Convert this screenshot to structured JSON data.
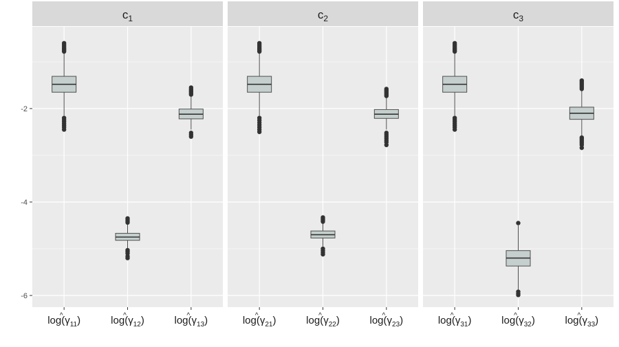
{
  "chart_data": {
    "type": "boxplot",
    "colors": {
      "panel_background": "#ebebeb",
      "strip_background": "#d9d9d9",
      "grid": "#ffffff",
      "box_fill": "#c5d0ce",
      "box_stroke": "#4d4d4d",
      "outlier": "#333333",
      "axis_text": "#4d4d4d"
    },
    "ylim": [
      -6.25,
      -0.25
    ],
    "y_ticks": [
      {
        "value": -2,
        "label": "-2"
      },
      {
        "value": -4,
        "label": "-4"
      },
      {
        "value": -6,
        "label": "-6"
      }
    ],
    "facets": [
      {
        "strip": {
          "base": "c",
          "sub": "1"
        },
        "boxes": [
          {
            "label": {
              "base": "log(",
              "hat": "^",
              "greek": "γ",
              "sub": "11",
              "close": ")"
            },
            "whisker_low": -2.15,
            "q1": -1.65,
            "median": -1.48,
            "q3": -1.31,
            "whisker_high": -0.8,
            "outliers": [
              -0.6,
              -0.63,
              -0.66,
              -0.69,
              -0.72,
              -0.75,
              -0.78,
              -2.2,
              -2.24,
              -2.28,
              -2.32,
              -2.36,
              -2.4,
              -2.45
            ]
          },
          {
            "label": {
              "base": "log(",
              "hat": "^",
              "greek": "γ",
              "sub": "12",
              "close": ")"
            },
            "whisker_low": -5.0,
            "q1": -4.82,
            "median": -4.75,
            "q3": -4.67,
            "whisker_high": -4.48,
            "outliers": [
              -4.35,
              -4.38,
              -4.41,
              -4.44,
              -5.03,
              -5.06,
              -5.1,
              -5.16,
              -5.2
            ]
          },
          {
            "label": {
              "base": "log(",
              "hat": "^",
              "greek": "γ",
              "sub": "13",
              "close": ")"
            },
            "whisker_low": -2.45,
            "q1": -2.22,
            "median": -2.12,
            "q3": -2.01,
            "whisker_high": -1.72,
            "outliers": [
              -1.55,
              -1.58,
              -1.61,
              -1.64,
              -1.67,
              -1.7,
              -2.52,
              -2.56,
              -2.6
            ]
          }
        ]
      },
      {
        "strip": {
          "base": "c",
          "sub": "2"
        },
        "boxes": [
          {
            "label": {
              "base": "log(",
              "hat": "^",
              "greek": "γ",
              "sub": "21",
              "close": ")"
            },
            "whisker_low": -2.15,
            "q1": -1.65,
            "median": -1.48,
            "q3": -1.31,
            "whisker_high": -0.8,
            "outliers": [
              -0.6,
              -0.63,
              -0.66,
              -0.69,
              -0.72,
              -0.75,
              -0.78,
              -2.2,
              -2.25,
              -2.3,
              -2.35,
              -2.4,
              -2.45,
              -2.5
            ]
          },
          {
            "label": {
              "base": "log(",
              "hat": "^",
              "greek": "γ",
              "sub": "22",
              "close": ")"
            },
            "whisker_low": -4.95,
            "q1": -4.77,
            "median": -4.7,
            "q3": -4.62,
            "whisker_high": -4.45,
            "outliers": [
              -4.33,
              -4.36,
              -4.39,
              -4.42,
              -5.0,
              -5.04,
              -5.08,
              -5.12
            ]
          },
          {
            "label": {
              "base": "log(",
              "hat": "^",
              "greek": "γ",
              "sub": "23",
              "close": ")"
            },
            "whisker_low": -2.45,
            "q1": -2.21,
            "median": -2.12,
            "q3": -2.02,
            "whisker_high": -1.75,
            "outliers": [
              -1.58,
              -1.61,
              -1.64,
              -1.67,
              -1.7,
              -1.73,
              -2.52,
              -2.56,
              -2.6,
              -2.64,
              -2.68,
              -2.72,
              -2.78
            ]
          }
        ]
      },
      {
        "strip": {
          "base": "c",
          "sub": "3"
        },
        "boxes": [
          {
            "label": {
              "base": "log(",
              "hat": "^",
              "greek": "γ",
              "sub": "31",
              "close": ")"
            },
            "whisker_low": -2.15,
            "q1": -1.65,
            "median": -1.48,
            "q3": -1.31,
            "whisker_high": -0.8,
            "outliers": [
              -0.6,
              -0.63,
              -0.66,
              -0.69,
              -0.72,
              -0.75,
              -0.78,
              -2.2,
              -2.24,
              -2.28,
              -2.32,
              -2.36,
              -2.4,
              -2.45
            ]
          },
          {
            "label": {
              "base": "log(",
              "hat": "^",
              "greek": "γ",
              "sub": "32",
              "close": ")"
            },
            "whisker_low": -5.88,
            "q1": -5.37,
            "median": -5.2,
            "q3": -5.04,
            "whisker_high": -4.5,
            "outliers": [
              -4.45,
              -5.92,
              -5.96,
              -5.99
            ]
          },
          {
            "label": {
              "base": "log(",
              "hat": "^",
              "greek": "γ",
              "sub": "33",
              "close": ")"
            },
            "whisker_low": -2.58,
            "q1": -2.23,
            "median": -2.1,
            "q3": -1.97,
            "whisker_high": -1.6,
            "outliers": [
              -1.4,
              -1.43,
              -1.46,
              -1.49,
              -1.52,
              -1.55,
              -1.58,
              -2.62,
              -2.65,
              -2.68,
              -2.71,
              -2.74,
              -2.78,
              -2.84
            ]
          }
        ]
      }
    ]
  }
}
